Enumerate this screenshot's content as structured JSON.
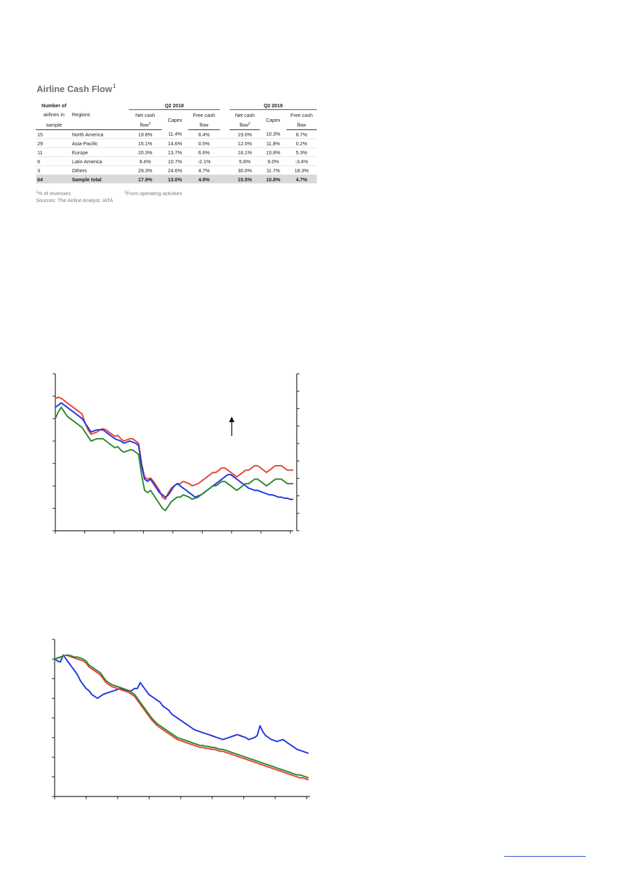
{
  "table": {
    "title": "Airline Cash Flow",
    "title_sup": "1",
    "header": {
      "num_line1": "Number of",
      "num_line2": "airlines in",
      "num_line3": "sample",
      "regions": "Regions",
      "q2_2018": "Q2 2018",
      "q2_2019": "Q2 2019",
      "net_cash_1": "Net cash",
      "net_cash_2": "flow",
      "net_cash_sup": "2",
      "capex": "Capex",
      "free_cash_1": "Free cash",
      "free_cash_2": "flow"
    },
    "rows": [
      {
        "n": "15",
        "region": "North America",
        "ncf18": "19.8%",
        "capex18": "11.4%",
        "fcf18": "8.4%",
        "ncf19": "19.0%",
        "capex19": "10.3%",
        "fcf19": "8.7%"
      },
      {
        "n": "29",
        "region": "Asia-Pacific",
        "ncf18": "15.1%",
        "capex18": "14.6%",
        "fcf18": "0.5%",
        "ncf19": "12.0%",
        "capex19": "11.8%",
        "fcf19": "0.2%"
      },
      {
        "n": "11",
        "region": "Europe",
        "ncf18": "20.3%",
        "capex18": "13.7%",
        "fcf18": "6.6%",
        "ncf19": "16.1%",
        "capex19": "10.8%",
        "fcf19": "5.3%"
      },
      {
        "n": "6",
        "region": "Latin America",
        "ncf18": "8.6%",
        "capex18": "10.7%",
        "fcf18": "-2.1%",
        "ncf19": "5.6%",
        "capex19": "9.0%",
        "fcf19": "-3.4%"
      },
      {
        "n": "3",
        "region": "Others",
        "ncf18": "29.3%",
        "capex18": "24.6%",
        "fcf18": "4.7%",
        "ncf19": "30.0%",
        "capex19": "11.7%",
        "fcf19": "18.3%"
      }
    ],
    "total": {
      "n": "64",
      "region": "Sample total",
      "ncf18": "17.9%",
      "capex18": "13.0%",
      "fcf18": "4.9%",
      "ncf19": "15.5%",
      "capex19": "10.8%",
      "fcf19": "4.7%"
    },
    "notes": {
      "sup1": "1",
      "note1": "% of revenues",
      "sup2": "2",
      "note2": "From operating activities",
      "sources": "Sources: The Airline Analyst, IATA"
    }
  },
  "chart_data": [
    {
      "type": "line",
      "title": "",
      "xlabel": "",
      "ylabel": "",
      "ylim": [
        0,
        7
      ],
      "y2_ticks": 9,
      "x_ticks": 9,
      "annotation": "up-arrow",
      "x": [
        0,
        1,
        2,
        3,
        4,
        5,
        6,
        7,
        8,
        9,
        10,
        11,
        12,
        13,
        14,
        15,
        16,
        17,
        18,
        19,
        20,
        21,
        22,
        23,
        24,
        25,
        26,
        27,
        28,
        29,
        30,
        31,
        32,
        33,
        34,
        35,
        36,
        37,
        38,
        39,
        40,
        41,
        42,
        43,
        44,
        45,
        46,
        47,
        48,
        49,
        50,
        51,
        52,
        53,
        54,
        55,
        56,
        57,
        58,
        59,
        60,
        61,
        62,
        63,
        64,
        65,
        66,
        67,
        68,
        69,
        70,
        71,
        72,
        73,
        74,
        75,
        76,
        77,
        78,
        79,
        80
      ],
      "series": [
        {
          "color": "#e8413c",
          "values": [
            5.9,
            5.95,
            5.9,
            5.8,
            5.7,
            5.6,
            5.5,
            5.4,
            5.3,
            5.2,
            4.8,
            4.5,
            4.3,
            4.35,
            4.4,
            4.5,
            4.55,
            4.5,
            4.4,
            4.3,
            4.2,
            4.25,
            4.1,
            4.0,
            4.05,
            4.1,
            4.1,
            4.0,
            3.9,
            3.0,
            2.4,
            2.3,
            2.35,
            2.2,
            2.0,
            1.8,
            1.5,
            1.4,
            1.7,
            1.9,
            2.0,
            2.1,
            2.1,
            2.2,
            2.15,
            2.1,
            2.0,
            2.05,
            2.1,
            2.2,
            2.3,
            2.4,
            2.5,
            2.6,
            2.6,
            2.7,
            2.8,
            2.8,
            2.7,
            2.6,
            2.5,
            2.4,
            2.5,
            2.6,
            2.7,
            2.7,
            2.8,
            2.9,
            2.9,
            2.8,
            2.7,
            2.6,
            2.7,
            2.8,
            2.9,
            2.9,
            2.9,
            2.8,
            2.7,
            2.7,
            2.7
          ]
        },
        {
          "color": "#1f36e0",
          "values": [
            5.5,
            5.6,
            5.7,
            5.6,
            5.5,
            5.4,
            5.3,
            5.2,
            5.1,
            5.0,
            4.8,
            4.6,
            4.4,
            4.45,
            4.5,
            4.5,
            4.5,
            4.4,
            4.3,
            4.2,
            4.1,
            4.05,
            4.0,
            3.9,
            3.95,
            4.0,
            3.95,
            3.9,
            3.8,
            2.9,
            2.3,
            2.2,
            2.3,
            2.1,
            1.9,
            1.7,
            1.6,
            1.5,
            1.6,
            1.8,
            2.0,
            2.1,
            2.0,
            1.9,
            1.8,
            1.7,
            1.6,
            1.5,
            1.55,
            1.6,
            1.7,
            1.8,
            1.9,
            2.0,
            2.1,
            2.2,
            2.3,
            2.4,
            2.5,
            2.5,
            2.4,
            2.3,
            2.2,
            2.1,
            2.0,
            1.9,
            1.85,
            1.8,
            1.8,
            1.75,
            1.7,
            1.65,
            1.6,
            1.6,
            1.55,
            1.5,
            1.5,
            1.45,
            1.45,
            1.4,
            1.4
          ]
        },
        {
          "color": "#2a8a2a",
          "values": [
            5.0,
            5.3,
            5.5,
            5.3,
            5.1,
            5.0,
            4.9,
            4.8,
            4.7,
            4.6,
            4.4,
            4.2,
            4.0,
            4.05,
            4.1,
            4.1,
            4.1,
            4.0,
            3.9,
            3.8,
            3.7,
            3.75,
            3.6,
            3.5,
            3.55,
            3.6,
            3.6,
            3.5,
            3.4,
            2.5,
            1.8,
            1.7,
            1.8,
            1.6,
            1.4,
            1.2,
            1.0,
            0.9,
            1.1,
            1.3,
            1.4,
            1.5,
            1.5,
            1.6,
            1.55,
            1.5,
            1.4,
            1.45,
            1.5,
            1.6,
            1.7,
            1.8,
            1.9,
            2.0,
            2.0,
            2.1,
            2.2,
            2.2,
            2.1,
            2.0,
            1.9,
            1.8,
            1.9,
            2.0,
            2.1,
            2.1,
            2.2,
            2.3,
            2.3,
            2.2,
            2.1,
            2.0,
            2.1,
            2.2,
            2.3,
            2.3,
            2.3,
            2.2,
            2.1,
            2.1,
            2.1
          ]
        }
      ]
    },
    {
      "type": "line",
      "title": "",
      "xlabel": "",
      "ylabel": "",
      "ylim": [
        0,
        8
      ],
      "x_ticks": 9,
      "x": [
        0,
        1,
        2,
        3,
        4,
        5,
        6,
        7,
        8,
        9,
        10,
        11,
        12,
        13,
        14,
        15,
        16,
        17,
        18,
        19,
        20,
        21,
        22,
        23,
        24,
        25,
        26,
        27,
        28,
        29,
        30,
        31,
        32,
        33,
        34,
        35,
        36,
        37,
        38,
        39,
        40,
        41,
        42,
        43,
        44,
        45,
        46,
        47,
        48,
        49,
        50,
        51,
        52,
        53,
        54,
        55,
        56,
        57,
        58,
        59,
        60,
        61,
        62,
        63,
        64,
        65,
        66,
        67,
        68,
        69,
        70,
        71,
        72,
        73,
        74,
        75,
        76,
        77,
        78,
        79,
        80,
        81,
        82,
        83,
        84,
        85,
        86,
        87,
        88,
        89
      ],
      "series": [
        {
          "color": "#1f36e0",
          "values": [
            7.0,
            6.9,
            6.85,
            7.2,
            7.0,
            6.8,
            6.6,
            6.4,
            6.2,
            5.9,
            5.7,
            5.5,
            5.4,
            5.2,
            5.1,
            5.0,
            5.1,
            5.2,
            5.25,
            5.3,
            5.35,
            5.4,
            5.45,
            5.5,
            5.45,
            5.4,
            5.35,
            5.4,
            5.5,
            5.5,
            5.8,
            5.6,
            5.4,
            5.2,
            5.1,
            5.0,
            4.9,
            4.8,
            4.6,
            4.5,
            4.4,
            4.2,
            4.1,
            4.0,
            3.9,
            3.8,
            3.7,
            3.6,
            3.5,
            3.4,
            3.35,
            3.3,
            3.25,
            3.2,
            3.15,
            3.1,
            3.05,
            3.0,
            2.95,
            2.9,
            2.95,
            3.0,
            3.05,
            3.1,
            3.15,
            3.1,
            3.05,
            3.0,
            2.9,
            2.95,
            3.0,
            3.1,
            3.6,
            3.3,
            3.1,
            3.0,
            2.9,
            2.85,
            2.8,
            2.85,
            2.9,
            2.8,
            2.7,
            2.6,
            2.5,
            2.4,
            2.35,
            2.3,
            2.25,
            2.2
          ]
        },
        {
          "color": "#e8413c",
          "values": [
            7.0,
            7.05,
            7.1,
            7.15,
            7.2,
            7.15,
            7.1,
            7.05,
            7.0,
            6.95,
            6.9,
            6.8,
            6.6,
            6.5,
            6.4,
            6.3,
            6.2,
            6.0,
            5.8,
            5.7,
            5.6,
            5.55,
            5.5,
            5.45,
            5.4,
            5.35,
            5.3,
            5.2,
            5.1,
            4.9,
            4.7,
            4.5,
            4.3,
            4.1,
            3.9,
            3.75,
            3.6,
            3.5,
            3.4,
            3.3,
            3.2,
            3.1,
            3.0,
            2.9,
            2.85,
            2.8,
            2.75,
            2.7,
            2.65,
            2.6,
            2.55,
            2.5,
            2.5,
            2.45,
            2.45,
            2.4,
            2.4,
            2.35,
            2.3,
            2.3,
            2.25,
            2.2,
            2.15,
            2.1,
            2.05,
            2.0,
            1.95,
            1.9,
            1.85,
            1.8,
            1.75,
            1.7,
            1.65,
            1.6,
            1.55,
            1.5,
            1.45,
            1.4,
            1.35,
            1.3,
            1.25,
            1.2,
            1.15,
            1.1,
            1.05,
            1.0,
            0.95,
            0.95,
            0.9,
            0.85
          ]
        },
        {
          "color": "#2a8a2a",
          "values": [
            7.0,
            7.05,
            7.1,
            7.15,
            7.2,
            7.2,
            7.15,
            7.1,
            7.1,
            7.05,
            7.0,
            6.9,
            6.7,
            6.6,
            6.5,
            6.4,
            6.3,
            6.1,
            5.9,
            5.8,
            5.7,
            5.65,
            5.6,
            5.55,
            5.5,
            5.45,
            5.4,
            5.3,
            5.2,
            5.0,
            4.8,
            4.6,
            4.4,
            4.2,
            4.0,
            3.85,
            3.7,
            3.6,
            3.5,
            3.4,
            3.3,
            3.2,
            3.1,
            3.0,
            2.95,
            2.9,
            2.85,
            2.8,
            2.75,
            2.7,
            2.65,
            2.6,
            2.6,
            2.55,
            2.55,
            2.5,
            2.5,
            2.45,
            2.4,
            2.4,
            2.35,
            2.3,
            2.25,
            2.2,
            2.15,
            2.1,
            2.05,
            2.0,
            1.95,
            1.9,
            1.85,
            1.8,
            1.75,
            1.7,
            1.65,
            1.6,
            1.55,
            1.5,
            1.45,
            1.4,
            1.35,
            1.3,
            1.25,
            1.2,
            1.15,
            1.1,
            1.1,
            1.05,
            1.0,
            0.95
          ]
        }
      ]
    }
  ]
}
